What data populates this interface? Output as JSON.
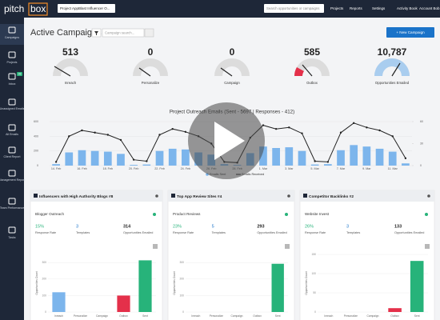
{
  "topbar": {
    "logo_a": "pitch",
    "logo_b": "box",
    "project": "Project AppBlast Influencer O...",
    "search": "Search opportunities or campaigns",
    "links": [
      "Projects",
      "Reports",
      "Settings",
      "Activity Book",
      "Account Bob"
    ]
  },
  "sidebar": [
    {
      "label": "Campaigns"
    },
    {
      "label": "Projects"
    },
    {
      "label": "Inbox",
      "badge": "38"
    },
    {
      "label": "Unassigned Emails"
    },
    {
      "label": "All Emails"
    },
    {
      "label": "Client Report"
    },
    {
      "label": "Management Report"
    },
    {
      "label": "Team Performance"
    },
    {
      "label": "Tasks"
    }
  ],
  "header": {
    "title": "Active Campaigns",
    "search": "Campaign search...",
    "button": "+ New Campaign"
  },
  "gauges": [
    {
      "value": 513,
      "label": "Inreach"
    },
    {
      "value": 0,
      "label": "Personalize"
    },
    {
      "value": 0,
      "label": "Campaign"
    },
    {
      "value": 585,
      "label": "Outbox"
    },
    {
      "value": "10,787",
      "label": "Opportunities Emailed"
    }
  ],
  "chart_data": {
    "type": "bar-line",
    "title": "Project Outreach Emails (Sent - 5697 | Responses - 412)",
    "categories": [
      "14. Feb",
      null,
      "16. Feb",
      null,
      "18. Feb",
      null,
      "20. Feb",
      null,
      "22. Feb",
      null,
      "24. Feb",
      null,
      "26. Feb",
      null,
      "28. Feb",
      null,
      "1. Mar",
      null,
      "3. Mar",
      null,
      "5. Mar",
      null,
      "7. Mar",
      null,
      "9. Mar",
      null,
      "11. Mar",
      null
    ],
    "series": [
      {
        "name": "Emails Sent",
        "color": "#7cb5ec",
        "values": [
          20,
          180,
          210,
          200,
          190,
          160,
          10,
          15,
          200,
          230,
          220,
          180,
          150,
          20,
          10,
          170,
          260,
          240,
          250,
          200,
          15,
          20,
          210,
          280,
          260,
          230,
          190,
          30
        ]
      },
      {
        "name": "Emails Received",
        "color": "#222222",
        "axis": "y2",
        "values": [
          5,
          40,
          48,
          45,
          42,
          35,
          8,
          6,
          42,
          50,
          46,
          40,
          30,
          5,
          4,
          38,
          55,
          50,
          52,
          44,
          6,
          5,
          45,
          58,
          52,
          48,
          40,
          10
        ]
      }
    ],
    "ylim": [
      0,
      600
    ],
    "yticks": [
      0,
      200,
      400,
      600
    ],
    "y2lim": [
      0,
      60
    ],
    "y2ticks": [
      0,
      30,
      60
    ]
  },
  "cards": [
    {
      "title": "Influencers with High Authority Blogs #8",
      "subtitle": "Blogger Outreach",
      "stats": [
        {
          "value": "15%",
          "label": "Response Rate"
        },
        {
          "value": 3,
          "label": "Templates"
        },
        {
          "value": 314,
          "label": "Opportunities Emailed"
        }
      ],
      "chart": {
        "y_label": "Opportunities Count",
        "categories": [
          "Inreach",
          "Personalize",
          "Campaign",
          "Outbox",
          "Sent"
        ],
        "values": [
          120,
          0,
          0,
          100,
          314
        ],
        "colors": [
          "#7cb5ec",
          "#434348",
          "#90ed7d",
          "#e4304a",
          "#27b37a"
        ],
        "ylim": [
          0,
          350
        ],
        "yticks": [
          0,
          100,
          200,
          300
        ]
      }
    },
    {
      "title": "Top App Review Sites #4",
      "subtitle": "Product Reviews",
      "stats": [
        {
          "value": "23%",
          "label": "Response Rate"
        },
        {
          "value": 5,
          "label": "Templates"
        },
        {
          "value": 293,
          "label": "Opportunities Emailed"
        }
      ],
      "chart": {
        "y_label": "Opportunities Count",
        "categories": [
          "Inreach",
          "Personalize",
          "Campaign",
          "Outbox",
          "Sent"
        ],
        "values": [
          0,
          0,
          0,
          0,
          293
        ],
        "colors": [
          "#7cb5ec",
          "#434348",
          "#90ed7d",
          "#e4304a",
          "#27b37a"
        ],
        "ylim": [
          0,
          350
        ],
        "yticks": [
          0,
          100,
          200,
          300
        ]
      }
    },
    {
      "title": "Competitor Backlinks #2",
      "subtitle": "Website Invest",
      "stats": [
        {
          "value": "26%",
          "label": "Response Rate"
        },
        {
          "value": 3,
          "label": "Templates"
        },
        {
          "value": 133,
          "label": "Opportunities Emailed"
        }
      ],
      "chart": {
        "y_label": "Opportunities Count",
        "categories": [
          "Inreach",
          "Personalize",
          "Campaign",
          "Outbox",
          "Sent"
        ],
        "values": [
          0,
          0,
          0,
          10,
          133
        ],
        "colors": [
          "#7cb5ec",
          "#434348",
          "#90ed7d",
          "#e4304a",
          "#27b37a"
        ],
        "ylim": [
          0,
          150
        ],
        "yticks": [
          0,
          50,
          100,
          150
        ]
      }
    }
  ]
}
